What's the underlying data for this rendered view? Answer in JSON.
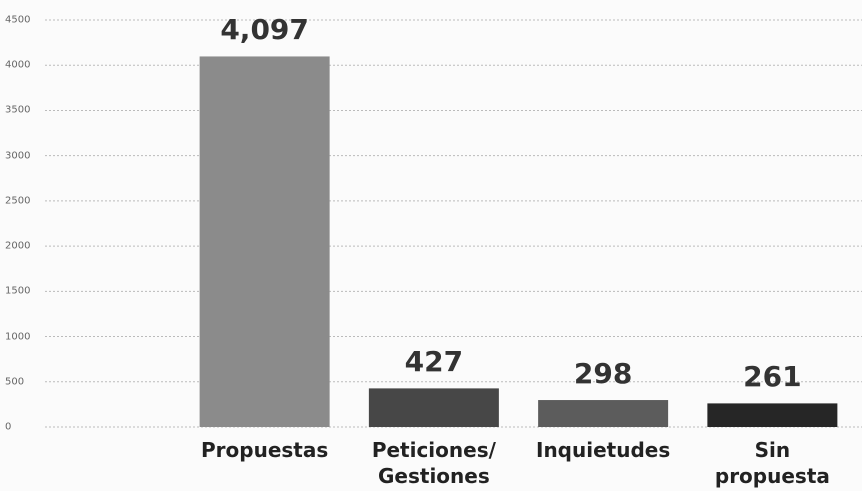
{
  "chart_data": {
    "type": "bar",
    "categories": [
      "Propuestas",
      "Peticiones/ Gestiones",
      "Inquietudes",
      "Sin propuesta"
    ],
    "values": [
      4097,
      427,
      298,
      261
    ],
    "value_labels": [
      "4,097",
      "427",
      "298",
      "261"
    ],
    "colors": [
      "#8b8b8b",
      "#474747",
      "#5c5c5c",
      "#262626"
    ],
    "ylim": [
      0,
      4500
    ],
    "yticks": [
      0,
      500,
      1000,
      1500,
      2000,
      2500,
      3000,
      3500,
      4000,
      4500
    ],
    "grid": true
  }
}
